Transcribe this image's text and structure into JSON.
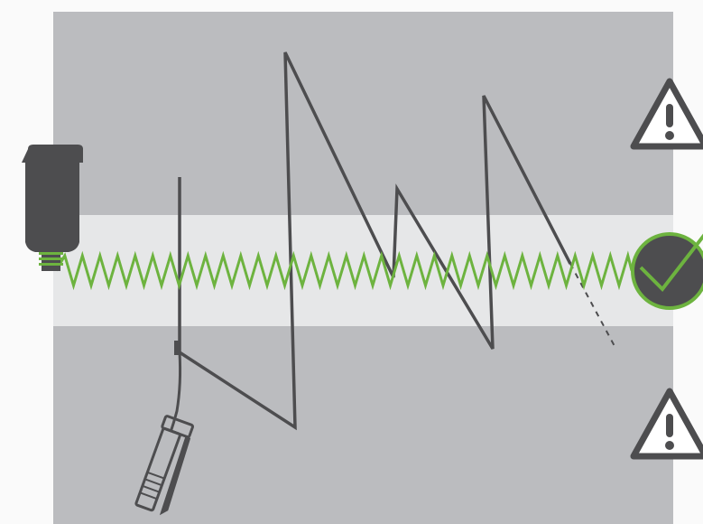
{
  "diagram": {
    "colors": {
      "page_background": "#fafafa",
      "panel": "#bbbcbf",
      "optimal_band": "#e6e7e8",
      "manual_line": "#4d4d4f",
      "automatic_line": "#6db33f",
      "icon_dark": "#4d4d4f",
      "warning_fill": "#ffffff"
    },
    "zones": [
      {
        "name": "over-lubrication",
        "icon": "warning-icon"
      },
      {
        "name": "optimal-lubrication",
        "icon": "checkmark-icon"
      },
      {
        "name": "under-lubrication",
        "icon": "warning-icon"
      }
    ],
    "elements": [
      {
        "name": "automatic-lubricator",
        "icon": "lubricator-icon"
      },
      {
        "name": "manual-grease-gun",
        "icon": "grease-gun-icon"
      }
    ]
  }
}
